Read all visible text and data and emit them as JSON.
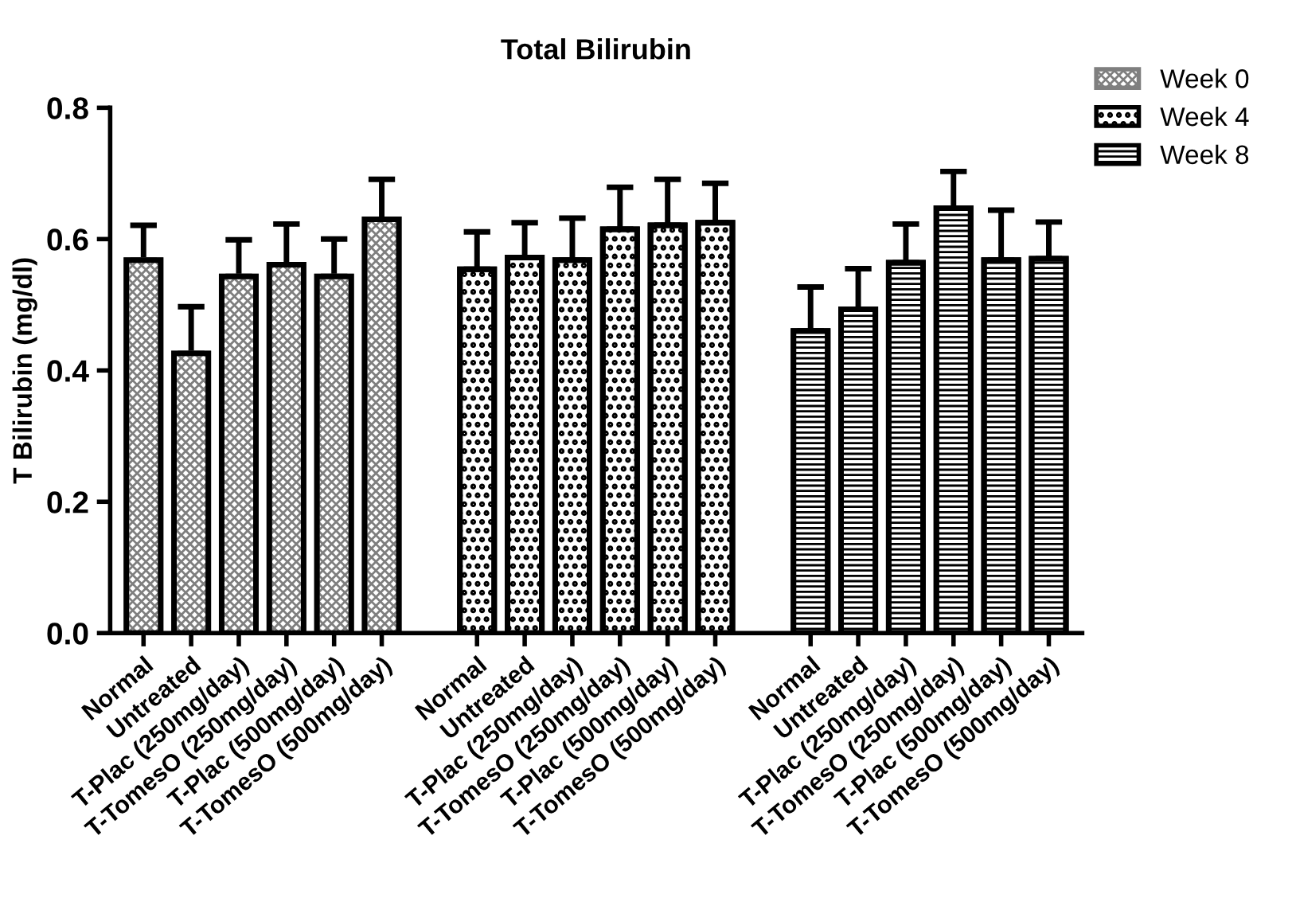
{
  "chart_data": {
    "type": "bar",
    "title": "Total Bilirubin",
    "ylabel": "T Bilirubin (mg/dl)",
    "categories": [
      "Normal",
      "Untreated",
      "T-Plac (250mg/day)",
      "T-TomesO (250mg/day)",
      "T-Plac (500mg/day)",
      "T-TomesO (500mg/day)",
      null,
      "Normal",
      "Untreated",
      "T-Plac (250mg/day)",
      "T-TomesO (250mg/day)",
      "T-Plac (500mg/day)",
      "T-TomesO (500mg/day)",
      null,
      "Normal",
      "Untreated",
      "T-Plac (250mg/day)",
      "T-TomesO (250mg/day)",
      "T-Plac (500mg/day)",
      "T-TomesO (500mg/day)"
    ],
    "series": [
      {
        "name": "Week 0",
        "color": "#7f7f7f",
        "values": [
          0.568,
          0.426,
          0.543,
          0.561,
          0.543,
          0.63,
          null,
          null,
          null,
          null,
          null,
          null,
          null,
          null,
          null,
          null,
          null,
          null,
          null,
          null
        ],
        "errors": [
          [
            0.568,
            0.621
          ],
          [
            0.426,
            0.497
          ],
          [
            0.543,
            0.599
          ],
          [
            0.561,
            0.623
          ],
          [
            0.543,
            0.6
          ],
          [
            0.63,
            0.691
          ],
          null,
          null,
          null,
          null,
          null,
          null,
          null,
          null,
          null,
          null,
          null,
          null,
          null,
          null
        ]
      },
      {
        "name": "Week 4",
        "color": "#000000",
        "values": [
          null,
          null,
          null,
          null,
          null,
          null,
          null,
          0.554,
          0.572,
          0.568,
          0.615,
          0.621,
          0.625,
          null,
          null,
          null,
          null,
          null,
          null,
          null
        ],
        "errors": [
          null,
          null,
          null,
          null,
          null,
          null,
          null,
          [
            0.554,
            0.611
          ],
          [
            0.572,
            0.625
          ],
          [
            0.568,
            0.632
          ],
          [
            0.615,
            0.679
          ],
          [
            0.621,
            0.691
          ],
          [
            0.625,
            0.685
          ],
          null,
          null,
          null,
          null,
          null,
          null,
          null
        ]
      },
      {
        "name": "Week 8",
        "color": "#000000",
        "values": [
          null,
          null,
          null,
          null,
          null,
          null,
          null,
          null,
          null,
          null,
          null,
          null,
          null,
          null,
          0.46,
          0.493,
          0.564,
          0.647,
          0.568,
          0.57
        ],
        "errors": [
          null,
          null,
          null,
          null,
          null,
          null,
          null,
          null,
          null,
          null,
          null,
          null,
          null,
          null,
          [
            0.46,
            0.527
          ],
          [
            0.493,
            0.555
          ],
          [
            0.564,
            0.623
          ],
          [
            0.647,
            0.703
          ],
          [
            0.568,
            0.644
          ],
          [
            0.57,
            0.626
          ]
        ]
      }
    ],
    "ylim": [
      0,
      0.8
    ],
    "yticks": [
      {
        "value": 0,
        "label": "0.0"
      },
      0.2,
      0.4,
      0.6,
      0.8
    ],
    "legend": "top right",
    "grid": false
  }
}
